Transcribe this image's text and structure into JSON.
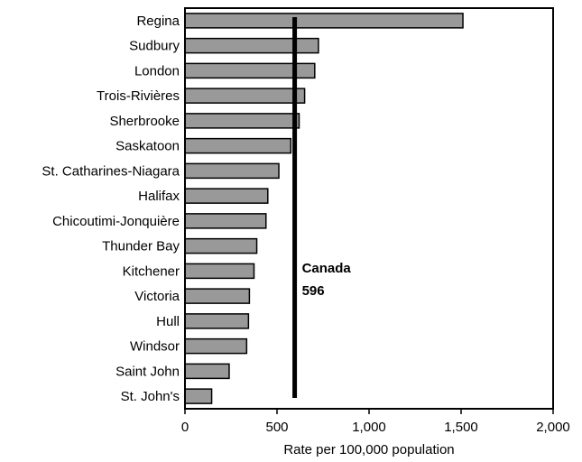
{
  "chart_data": {
    "type": "bar",
    "orientation": "horizontal",
    "categories": [
      "Regina",
      "Sudbury",
      "London",
      "Trois-Rivières",
      "Sherbrooke",
      "Saskatoon",
      "St. Catharines-Niagara",
      "Halifax",
      "Chicoutimi-Jonquière",
      "Thunder Bay",
      "Kitchener",
      "Victoria",
      "Hull",
      "Windsor",
      "Saint John",
      "St. John's"
    ],
    "values": [
      1510,
      725,
      705,
      650,
      620,
      575,
      510,
      450,
      440,
      390,
      375,
      350,
      345,
      335,
      240,
      145
    ],
    "xlabel": "Rate per 100,000 population",
    "xlim": [
      0,
      2000
    ],
    "xticks": [
      0,
      500,
      1000,
      1500,
      2000
    ],
    "xtick_labels": [
      "0",
      "500",
      "1,000",
      "1,500",
      "2,000"
    ],
    "grid": false,
    "bar_color": "#999999",
    "reference_line": {
      "value": 596,
      "label": "Canada",
      "value_label": "596",
      "color": "#000000"
    }
  }
}
